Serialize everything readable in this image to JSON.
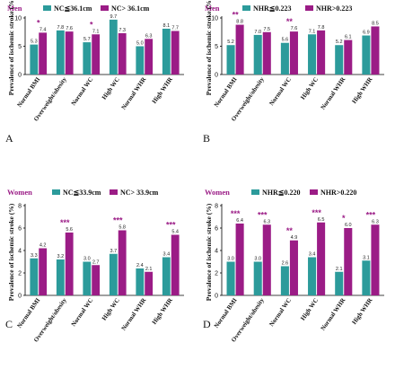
{
  "colors": {
    "series1": "#2c9b9b",
    "series2": "#9b1c86",
    "sex_label": "#9b1c86",
    "star": "#9b1c86"
  },
  "chart_data": [
    {
      "panel": "A",
      "type": "bar",
      "sex": "Men",
      "ylabel": "Prevalence of ischemic stroke (%)",
      "ylim": [
        0,
        10
      ],
      "yticks": [
        0,
        5,
        10
      ],
      "categories": [
        "Normal BMI",
        "Overweight/obesity",
        "Normal WC",
        "High WC",
        "Normal WHR",
        "High WHR"
      ],
      "series": [
        {
          "name": "NC≦36.1cm",
          "values": [
            5.3,
            7.8,
            5.7,
            9.7,
            5.0,
            8.1
          ]
        },
        {
          "name": "NC> 36.1cm",
          "values": [
            7.4,
            7.6,
            7.1,
            7.3,
            6.3,
            7.7
          ]
        }
      ],
      "stars": [
        "*",
        "",
        "*",
        "",
        "",
        ""
      ]
    },
    {
      "panel": "B",
      "type": "bar",
      "sex": "Men",
      "ylabel": "Prevalence of ischemic stroke (%)",
      "ylim": [
        0,
        10
      ],
      "yticks": [
        0,
        5,
        10
      ],
      "categories": [
        "Normal BMI",
        "Overweight/obesity",
        "Normal WC",
        "High WC",
        "Normal WHR",
        "High WHR"
      ],
      "series": [
        {
          "name": "NHR≦0.223",
          "values": [
            5.2,
            7.0,
            5.6,
            7.1,
            5.2,
            6.9
          ]
        },
        {
          "name": "NHR>0.223",
          "values": [
            8.8,
            7.5,
            7.6,
            7.8,
            6.1,
            8.5
          ]
        }
      ],
      "stars": [
        "**",
        "",
        "**",
        "",
        "",
        ""
      ]
    },
    {
      "panel": "C",
      "type": "bar",
      "sex": "Women",
      "ylabel": "Prevalence of ischemic stroke (%)",
      "ylim": [
        0,
        8
      ],
      "yticks": [
        0,
        2,
        4,
        6,
        8
      ],
      "categories": [
        "Normal BMI",
        "Overweight/obesity",
        "Normal WC",
        "High WC",
        "Normal WHR",
        "High WHR"
      ],
      "series": [
        {
          "name": "NC≦33.9cm",
          "values": [
            3.3,
            3.2,
            3.0,
            3.7,
            2.4,
            3.4
          ]
        },
        {
          "name": "NC> 33.9cm",
          "values": [
            4.2,
            5.6,
            2.7,
            5.8,
            2.1,
            5.4
          ]
        }
      ],
      "stars": [
        "",
        "***",
        "",
        "***",
        "",
        "***"
      ]
    },
    {
      "panel": "D",
      "type": "bar",
      "sex": "Women",
      "ylabel": "Prevalence of ischemic stroke (%)",
      "ylim": [
        0,
        8
      ],
      "yticks": [
        0,
        2,
        4,
        6,
        8
      ],
      "categories": [
        "Normal BMI",
        "Overweight/obesity",
        "Normal WC",
        "High WC",
        "Normal WHR",
        "High WHR"
      ],
      "series": [
        {
          "name": "NHR≦0.220",
          "values": [
            3.0,
            3.0,
            2.6,
            3.4,
            2.1,
            3.1
          ]
        },
        {
          "name": "NHR>0.220",
          "values": [
            6.4,
            6.3,
            4.9,
            6.5,
            6.0,
            6.3
          ]
        }
      ],
      "stars": [
        "***",
        "***",
        "**",
        "***",
        "*",
        "***"
      ]
    }
  ]
}
